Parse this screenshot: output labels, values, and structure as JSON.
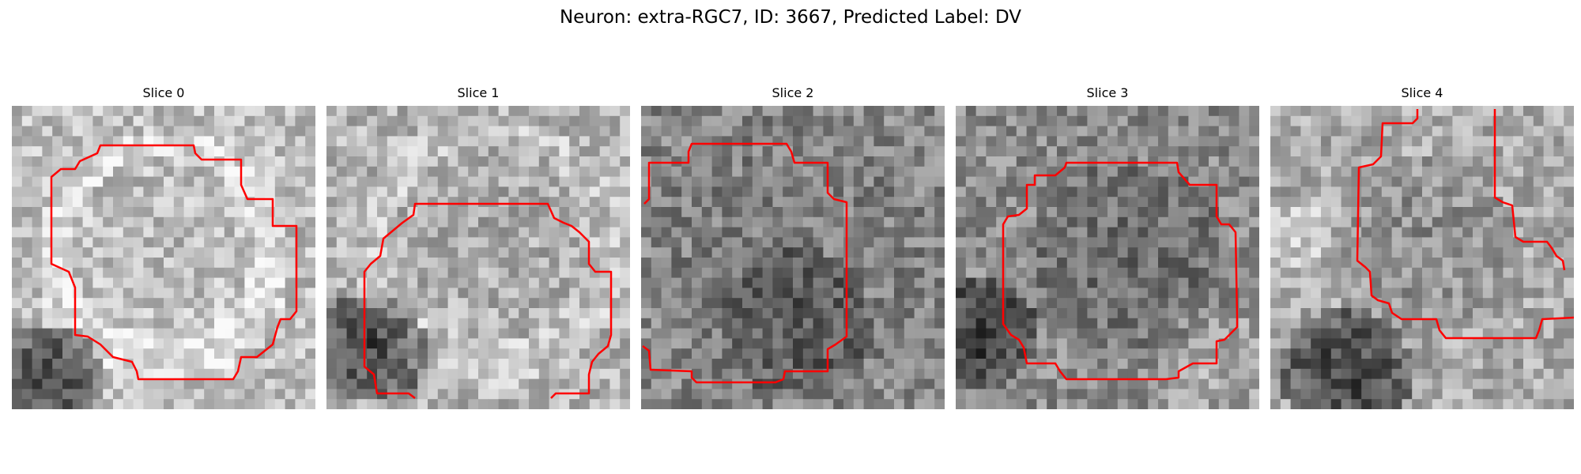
{
  "figure": {
    "title": "Neuron: extra-RGC7, ID: 3667, Predicted Label: DV"
  },
  "panels": [
    {
      "title": "Slice 0"
    },
    {
      "title": "Slice 1"
    },
    {
      "title": "Slice 2"
    },
    {
      "title": "Slice 3"
    },
    {
      "title": "Slice 4"
    }
  ],
  "colors": {
    "contour": "#ff0000",
    "colormap": "gray"
  }
}
